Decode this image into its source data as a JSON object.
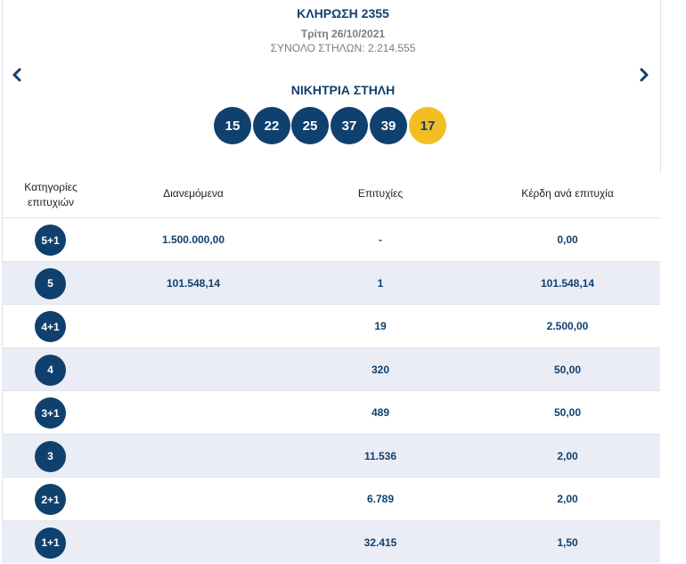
{
  "draw": {
    "title": "ΚΛΗΡΩΣΗ 2355",
    "date": "Τρίτη 26/10/2021",
    "total_columns": "ΣΥΝΟΛΟ ΣΤΗΛΩΝ: 2.214.555"
  },
  "nav": {
    "prev_icon": "chevron-left-icon",
    "next_icon": "chevron-right-icon"
  },
  "winning": {
    "title": "ΝΙΚΗΤΡΙΑ ΣΤΗΛΗ",
    "numbers": [
      "15",
      "22",
      "25",
      "37",
      "39"
    ],
    "bonus": "17"
  },
  "colors": {
    "primary": "#10406e",
    "bonus": "#f3be23",
    "row_alt": "#eaedf5"
  },
  "table": {
    "headers": {
      "category": "Κατηγορίες επιτυχιών",
      "distributed": "Διανεμόμενα",
      "winners": "Επιτυχίες",
      "prize": "Κέρδη ανά επιτυχία"
    },
    "rows": [
      {
        "category": "5+1",
        "distributed": "1.500.000,00",
        "winners": "-",
        "prize": "0,00"
      },
      {
        "category": "5",
        "distributed": "101.548,14",
        "winners": "1",
        "prize": "101.548,14"
      },
      {
        "category": "4+1",
        "distributed": "",
        "winners": "19",
        "prize": "2.500,00"
      },
      {
        "category": "4",
        "distributed": "",
        "winners": "320",
        "prize": "50,00"
      },
      {
        "category": "3+1",
        "distributed": "",
        "winners": "489",
        "prize": "50,00"
      },
      {
        "category": "3",
        "distributed": "",
        "winners": "11.536",
        "prize": "2,00"
      },
      {
        "category": "2+1",
        "distributed": "",
        "winners": "6.789",
        "prize": "2,00"
      },
      {
        "category": "1+1",
        "distributed": "",
        "winners": "32.415",
        "prize": "1,50"
      }
    ]
  }
}
